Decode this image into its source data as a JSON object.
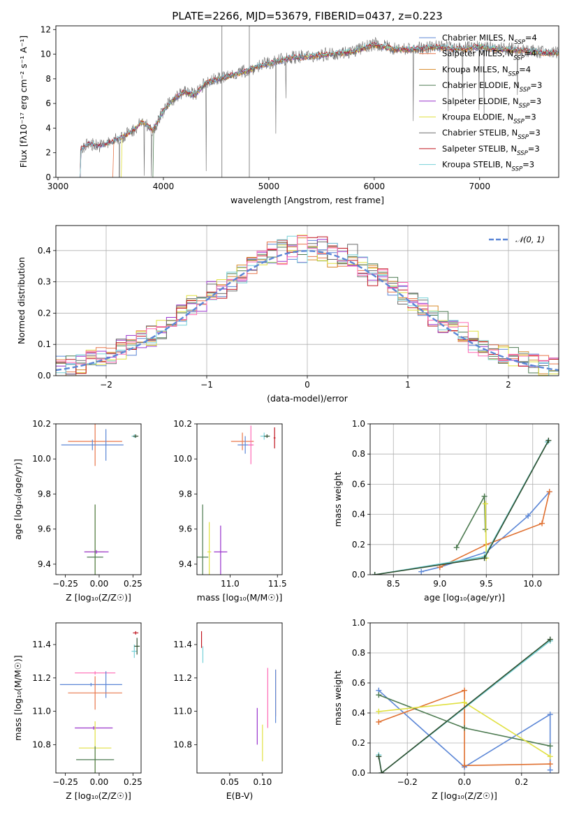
{
  "figure": {
    "title": "PLATE=2266, MJD=53679, FIBERID=0437, z=0.223"
  },
  "chart_data": [
    {
      "id": "spectrum",
      "type": "line",
      "title": "PLATE=2266, MJD=53679, FIBERID=0437, z=0.223",
      "xlabel": "wavelength [Angstrom, rest frame]",
      "ylabel": "Flux [fλ10⁻¹⁷ erg cm⁻² s⁻¹ A⁻¹]",
      "xlim": [
        2980,
        7750
      ],
      "ylim": [
        0,
        12.3
      ],
      "xticks": [
        "3000",
        "4000",
        "5000",
        "6000",
        "7000"
      ],
      "yticks": [
        "0",
        "2",
        "4",
        "6",
        "8",
        "10",
        "12"
      ],
      "legend_position": "upper-right",
      "x": [
        3210,
        3300,
        3400,
        3500,
        3600,
        3700,
        3800,
        3900,
        4000,
        4100,
        4200,
        4300,
        4400,
        4500,
        4600,
        4700,
        4800,
        4900,
        5000,
        5200,
        5400,
        5600,
        5800,
        6000,
        6200,
        6400,
        6600,
        6800,
        7000,
        7200,
        7400,
        7600,
        7750
      ],
      "y": [
        2.3,
        2.8,
        2.6,
        2.9,
        3.3,
        3.8,
        4.6,
        3.9,
        5.5,
        6.5,
        7.1,
        6.8,
        7.8,
        8.1,
        8.3,
        8.6,
        8.8,
        9.2,
        9.4,
        9.9,
        10.0,
        10.2,
        10.4,
        11.0,
        10.6,
        10.6,
        10.8,
        10.6,
        10.8,
        10.6,
        10.5,
        10.3,
        10.3
      ],
      "legend": [
        {
          "label": "Chabrier MILES, N",
          "sub": "SSP",
          "suffix": "=4",
          "color": "#5b86d6"
        },
        {
          "label": "Salpeter MILES, N",
          "sub": "SSP",
          "suffix": "=4",
          "color": "#e8764a"
        },
        {
          "label": "Kroupa MILES, N",
          "sub": "SSP",
          "suffix": "=4",
          "color": "#d88a2a"
        },
        {
          "label": "Chabrier ELODIE, N",
          "sub": "SSP",
          "suffix": "=3",
          "color": "#4c7a50"
        },
        {
          "label": "Salpeter ELODIE, N",
          "sub": "SSP",
          "suffix": "=3",
          "color": "#9932cc"
        },
        {
          "label": "Kroupa ELODIE, N",
          "sub": "SSP",
          "suffix": "=3",
          "color": "#e0e040"
        },
        {
          "label": "Chabrier STELIB, N",
          "sub": "SSP",
          "suffix": "=3",
          "color": "#6b6b6b"
        },
        {
          "label": "Salpeter STELIB, N",
          "sub": "SSP",
          "suffix": "=3",
          "color": "#c0141e"
        },
        {
          "label": "Kroupa STELIB, N",
          "sub": "SSP",
          "suffix": "=3",
          "color": "#76d1d8"
        }
      ]
    },
    {
      "id": "residual-histogram",
      "type": "line",
      "xlabel": "(data-model)/error",
      "ylabel": "Normed distribution",
      "xlim": [
        -2.5,
        2.5
      ],
      "ylim": [
        0,
        0.48
      ],
      "xticks": [
        "−2",
        "−1",
        "0",
        "1",
        "2"
      ],
      "yticks": [
        "0.0",
        "0.1",
        "0.2",
        "0.3",
        "0.4"
      ],
      "legend_label": "𝒩(0, 1)",
      "legend_position": "upper-right",
      "gaussian": {
        "mu": 0,
        "sigma": 1
      },
      "bin_width": 0.1
    },
    {
      "id": "age-vs-Z",
      "type": "scatter",
      "xlabel": "Z [log₁₀(Z/Z☉)]",
      "ylabel": "age  [log₁₀(age/yr)]",
      "xlim": [
        -0.32,
        0.31
      ],
      "ylim": [
        9.34,
        10.2
      ],
      "xticks": [
        "−0.25",
        "0.00",
        "0.25"
      ],
      "yticks": [
        "9.4",
        "9.6",
        "9.8",
        "10.0",
        "10.2"
      ],
      "points": [
        {
          "x": -0.03,
          "y": 10.1,
          "xerr": 0.2,
          "yerr": 0.14,
          "color": "#e8764a"
        },
        {
          "x": -0.05,
          "y": 10.08,
          "xerr": 0.23,
          "yerr": 0.03,
          "color": "#5b86d6"
        },
        {
          "x": 0.05,
          "y": 10.08,
          "xerr": 0.0,
          "yerr": 0.09,
          "color": "#5b86d6"
        },
        {
          "x": 0.26,
          "y": 10.13,
          "xerr": 0.02,
          "yerr": 0.01,
          "color": "#76d1d8"
        },
        {
          "x": 0.27,
          "y": 10.13,
          "xerr": 0.02,
          "yerr": 0.01,
          "color": "#2f4f2f"
        },
        {
          "x": -0.03,
          "y": 9.47,
          "xerr": 0.07,
          "yerr": 0.27,
          "color": "#e0e040"
        },
        {
          "x": -0.02,
          "y": 9.47,
          "xerr": 0.09,
          "yerr": 0.01,
          "color": "#9932cc"
        },
        {
          "x": -0.03,
          "y": 9.44,
          "xerr": 0.06,
          "yerr": 0.3,
          "color": "#4c7a50"
        }
      ]
    },
    {
      "id": "age-vs-mass",
      "type": "scatter",
      "xlabel": "mass [log₁₀(M/M☉)]",
      "ylabel": "",
      "xlim": [
        10.65,
        11.55
      ],
      "ylim": [
        9.34,
        10.2
      ],
      "xticks": [
        "11.0",
        "11.5"
      ],
      "yticks": [
        "9.4",
        "9.6",
        "9.8",
        "10.0",
        "10.2"
      ],
      "points": [
        {
          "x": 11.13,
          "y": 10.1,
          "xerr": 0.12,
          "yerr": 0.05,
          "color": "#e8764a"
        },
        {
          "x": 11.16,
          "y": 10.08,
          "xerr": 0.08,
          "yerr": 0.05,
          "color": "#5b86d6"
        },
        {
          "x": 11.22,
          "y": 10.08,
          "xerr": 0.03,
          "yerr": 0.11,
          "color": "#ff69b4"
        },
        {
          "x": 11.36,
          "y": 10.13,
          "xerr": 0.04,
          "yerr": 0.02,
          "color": "#76d1d8"
        },
        {
          "x": 11.39,
          "y": 10.13,
          "xerr": 0.03,
          "yerr": 0.01,
          "color": "#2f4f2f"
        },
        {
          "x": 11.47,
          "y": 10.12,
          "xerr": 0.01,
          "yerr": 0.06,
          "color": "#c0141e"
        },
        {
          "x": 10.78,
          "y": 9.47,
          "xerr": 0.02,
          "yerr": 0.17,
          "color": "#e0e040"
        },
        {
          "x": 10.71,
          "y": 9.44,
          "xerr": 0.06,
          "yerr": 0.3,
          "color": "#4c7a50"
        },
        {
          "x": 10.9,
          "y": 9.47,
          "xerr": 0.07,
          "yerr": 0.15,
          "color": "#9932cc"
        }
      ]
    },
    {
      "id": "weight-vs-age",
      "type": "line",
      "xlabel": "age  [log₁₀(age/yr)]",
      "ylabel": "mass weight",
      "xlim": [
        8.25,
        10.28
      ],
      "ylim": [
        0,
        1.0
      ],
      "xticks": [
        "8.5",
        "9.0",
        "9.5",
        "10.0"
      ],
      "yticks": [
        "0.0",
        "0.2",
        "0.4",
        "0.6",
        "0.8",
        "1.0"
      ],
      "series": [
        {
          "color": "#5b86d6",
          "x": [
            8.8,
            9.0,
            9.5,
            9.95,
            10.18
          ],
          "y": [
            0.02,
            0.05,
            0.15,
            0.39,
            0.55
          ]
        },
        {
          "color": "#e07030",
          "x": [
            9.0,
            9.5,
            10.1,
            10.18
          ],
          "y": [
            0.05,
            0.2,
            0.34,
            0.55
          ]
        },
        {
          "color": "#4c7a50",
          "x": [
            9.18,
            9.48,
            9.49
          ],
          "y": [
            0.18,
            0.52,
            0.3
          ]
        },
        {
          "color": "#e0e040",
          "x": [
            9.49,
            9.5
          ],
          "y": [
            0.47,
            0.11
          ]
        },
        {
          "color": "#76d1d8",
          "x": [
            8.3,
            9.48,
            10.16
          ],
          "y": [
            0.0,
            0.12,
            0.88
          ]
        },
        {
          "color": "#2f4f2f",
          "x": [
            8.3,
            9.48,
            10.17
          ],
          "y": [
            0.0,
            0.11,
            0.89
          ]
        }
      ]
    },
    {
      "id": "mass-vs-Z",
      "type": "scatter",
      "xlabel": "Z [log₁₀(Z/Z☉)]",
      "ylabel": "mass [log₁₀(M/M☉)]",
      "xlim": [
        -0.32,
        0.31
      ],
      "ylim": [
        10.63,
        11.53
      ],
      "xticks": [
        "−0.25",
        "0.00",
        "0.25"
      ],
      "yticks": [
        "10.8",
        "11.0",
        "11.2",
        "11.4"
      ],
      "points": [
        {
          "x": -0.03,
          "y": 11.23,
          "xerr": 0.15,
          "yerr": 0.01,
          "color": "#ff69b4"
        },
        {
          "x": -0.06,
          "y": 11.16,
          "xerr": 0.23,
          "yerr": 0.01,
          "color": "#5b86d6"
        },
        {
          "x": 0.05,
          "y": 11.16,
          "xerr": 0.0,
          "yerr": 0.08,
          "color": "#5b86d6"
        },
        {
          "x": -0.03,
          "y": 11.11,
          "xerr": 0.2,
          "yerr": 0.1,
          "color": "#e8764a"
        },
        {
          "x": -0.04,
          "y": 10.9,
          "xerr": 0.14,
          "yerr": 0.01,
          "color": "#9932cc"
        },
        {
          "x": -0.03,
          "y": 10.78,
          "xerr": 0.12,
          "yerr": 0.16,
          "color": "#e0e040"
        },
        {
          "x": -0.03,
          "y": 10.71,
          "xerr": 0.14,
          "yerr": 0.08,
          "color": "#4c7a50"
        },
        {
          "x": 0.27,
          "y": 11.47,
          "xerr": 0.02,
          "yerr": 0.01,
          "color": "#c0141e"
        },
        {
          "x": 0.26,
          "y": 11.36,
          "xerr": 0.02,
          "yerr": 0.04,
          "color": "#76d1d8"
        },
        {
          "x": 0.28,
          "y": 11.39,
          "xerr": 0.02,
          "yerr": 0.05,
          "color": "#2f4f2f"
        }
      ]
    },
    {
      "id": "mass-vs-EBV",
      "type": "scatter",
      "xlabel": "E(B-V)",
      "ylabel": "",
      "xlim": [
        0.0,
        0.13
      ],
      "ylim": [
        10.63,
        11.53
      ],
      "xticks": [
        "0.05",
        "0.10"
      ],
      "yticks": [
        "10.8",
        "11.0",
        "11.2",
        "11.4"
      ],
      "points": [
        {
          "x": 0.007,
          "y": 11.43,
          "xerr": 0,
          "yerr": 0.05,
          "color": "#c0141e"
        },
        {
          "x": 0.009,
          "y": 11.34,
          "xerr": 0,
          "yerr": 0.05,
          "color": "#76d1d8"
        },
        {
          "x": 0.092,
          "y": 10.91,
          "xerr": 0,
          "yerr": 0.11,
          "color": "#9932cc"
        },
        {
          "x": 0.1,
          "y": 10.81,
          "xerr": 0,
          "yerr": 0.11,
          "color": "#e0e040"
        },
        {
          "x": 0.108,
          "y": 11.08,
          "xerr": 0,
          "yerr": 0.18,
          "color": "#ff69b4"
        },
        {
          "x": 0.12,
          "y": 11.11,
          "xerr": 0,
          "yerr": 0.14,
          "color": "#e8764a"
        },
        {
          "x": 0.12,
          "y": 11.09,
          "xerr": 0,
          "yerr": 0.16,
          "color": "#5b86d6"
        }
      ]
    },
    {
      "id": "weight-vs-Z",
      "type": "line",
      "xlabel": "Z [log₁₀(Z/Z☉)]",
      "ylabel": "mass weight",
      "xlim": [
        -0.33,
        0.33
      ],
      "ylim": [
        0,
        1.0
      ],
      "xticks": [
        "−0.2",
        "0.0",
        "0.2"
      ],
      "yticks": [
        "0.0",
        "0.2",
        "0.4",
        "0.6",
        "0.8",
        "1.0"
      ],
      "series": [
        {
          "color": "#5b86d6",
          "x": [
            -0.3,
            0.0,
            0.3,
            0.3
          ],
          "y": [
            0.55,
            0.04,
            0.39,
            0.02
          ]
        },
        {
          "color": "#e07030",
          "x": [
            -0.3,
            0.0,
            0.0,
            0.3
          ],
          "y": [
            0.34,
            0.55,
            0.05,
            0.06
          ]
        },
        {
          "color": "#4c7a50",
          "x": [
            -0.3,
            0.0,
            0.3
          ],
          "y": [
            0.52,
            0.3,
            0.18
          ]
        },
        {
          "color": "#e0e040",
          "x": [
            -0.3,
            0.0,
            0.3
          ],
          "y": [
            0.41,
            0.47,
            0.11
          ]
        },
        {
          "color": "#76d1d8",
          "x": [
            -0.3,
            -0.29,
            0.3
          ],
          "y": [
            0.12,
            0.0,
            0.88
          ]
        },
        {
          "color": "#2f4f2f",
          "x": [
            -0.3,
            -0.29,
            0.3
          ],
          "y": [
            0.11,
            0.0,
            0.89
          ]
        }
      ]
    }
  ]
}
